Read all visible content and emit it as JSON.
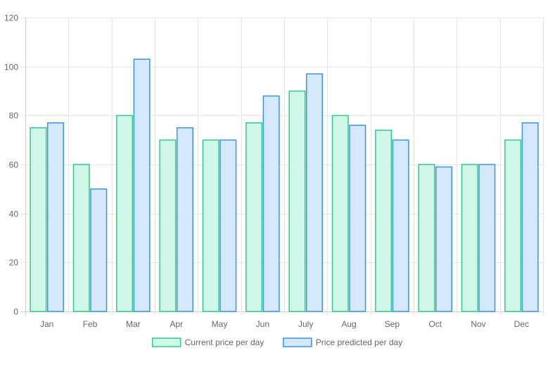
{
  "chart_data": {
    "type": "bar",
    "categories": [
      "Jan",
      "Feb",
      "Mar",
      "Apr",
      "May",
      "Jun",
      "July",
      "Aug",
      "Sep",
      "Oct",
      "Nov",
      "Dec"
    ],
    "series": [
      {
        "name": "Current price per day",
        "values": [
          75,
          60,
          80,
          70,
          70,
          77,
          90,
          80,
          74,
          60,
          60,
          70
        ],
        "fill": "#d1f7e8",
        "stroke": "#2ecc8a"
      },
      {
        "name": "Price predicted per day",
        "values": [
          77,
          50,
          103,
          75,
          70,
          88,
          97,
          76,
          70,
          59,
          60,
          77
        ],
        "fill": "#d6e8fc",
        "stroke": "#3d93e0"
      }
    ],
    "ylim": [
      0,
      120
    ],
    "yticks": [
      0,
      20,
      40,
      60,
      80,
      100,
      120
    ],
    "grid": true,
    "legend": "bottom-center"
  }
}
